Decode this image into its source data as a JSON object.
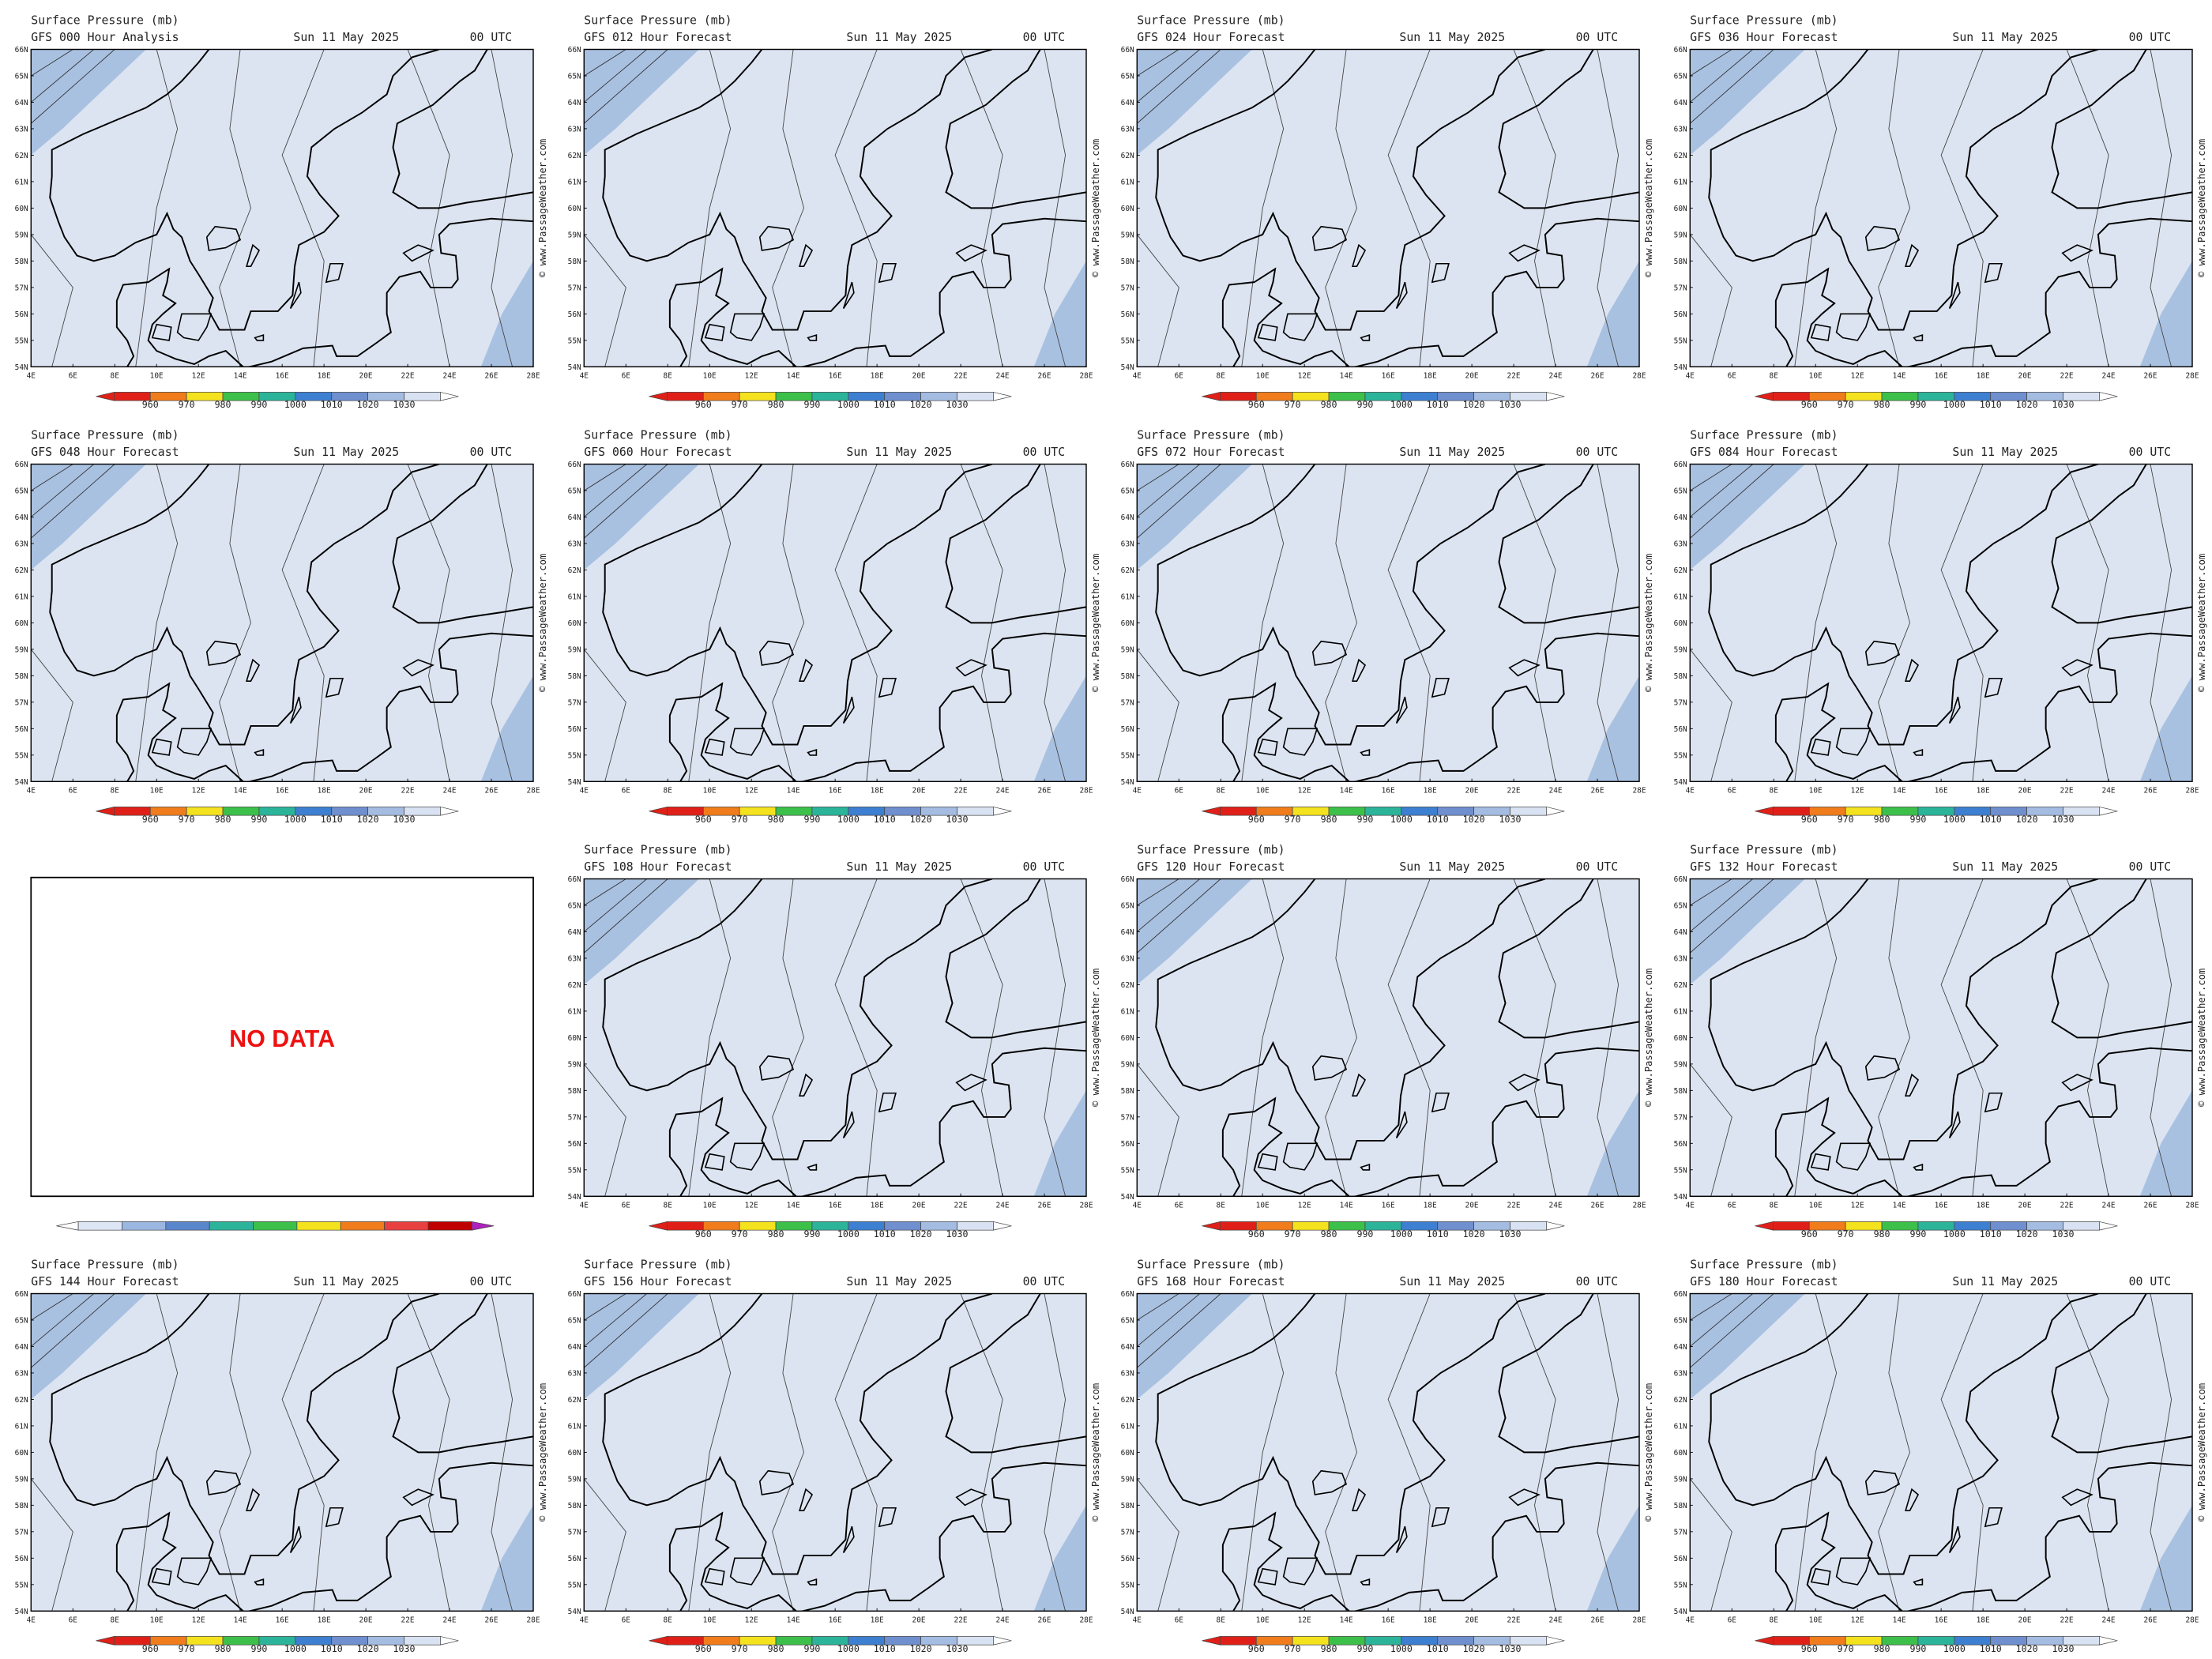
{
  "panels": [
    {
      "title": "Surface Pressure (mb)",
      "subtitle": "GFS 000 Hour Analysis",
      "date": "Sun 11 May 2025",
      "time": "00 UTC"
    },
    {
      "title": "Surface Pressure (mb)",
      "subtitle": "GFS 012 Hour Forecast",
      "date": "Sun 11 May 2025",
      "time": "00 UTC"
    },
    {
      "title": "Surface Pressure (mb)",
      "subtitle": "GFS 024 Hour Forecast",
      "date": "Sun 11 May 2025",
      "time": "00 UTC"
    },
    {
      "title": "Surface Pressure (mb)",
      "subtitle": "GFS 036 Hour Forecast",
      "date": "Sun 11 May 2025",
      "time": "00 UTC"
    },
    {
      "title": "Surface Pressure (mb)",
      "subtitle": "GFS 048 Hour Forecast",
      "date": "Sun 11 May 2025",
      "time": "00 UTC"
    },
    {
      "title": "Surface Pressure (mb)",
      "subtitle": "GFS 060 Hour Forecast",
      "date": "Sun 11 May 2025",
      "time": "00 UTC"
    },
    {
      "title": "Surface Pressure (mb)",
      "subtitle": "GFS 072 Hour Forecast",
      "date": "Sun 11 May 2025",
      "time": "00 UTC"
    },
    {
      "title": "Surface Pressure (mb)",
      "subtitle": "GFS 084 Hour Forecast",
      "date": "Sun 11 May 2025",
      "time": "00 UTC"
    },
    {
      "message": "NO DATA"
    },
    {
      "title": "Surface Pressure (mb)",
      "subtitle": "GFS 108 Hour Forecast",
      "date": "Sun 11 May 2025",
      "time": "00 UTC"
    },
    {
      "title": "Surface Pressure (mb)",
      "subtitle": "GFS 120 Hour Forecast",
      "date": "Sun 11 May 2025",
      "time": "00 UTC"
    },
    {
      "title": "Surface Pressure (mb)",
      "subtitle": "GFS 132 Hour Forecast",
      "date": "Sun 11 May 2025",
      "time": "00 UTC"
    },
    {
      "title": "Surface Pressure (mb)",
      "subtitle": "GFS 144 Hour Forecast",
      "date": "Sun 11 May 2025",
      "time": "00 UTC"
    },
    {
      "title": "Surface Pressure (mb)",
      "subtitle": "GFS 156 Hour Forecast",
      "date": "Sun 11 May 2025",
      "time": "00 UTC"
    },
    {
      "title": "Surface Pressure (mb)",
      "subtitle": "GFS 168 Hour Forecast",
      "date": "Sun 11 May 2025",
      "time": "00 UTC"
    },
    {
      "title": "Surface Pressure (mb)",
      "subtitle": "GFS 180 Hour Forecast",
      "date": "Sun 11 May 2025",
      "time": "00 UTC"
    }
  ],
  "lat_labels": [
    "66N",
    "65N",
    "64N",
    "63N",
    "62N",
    "61N",
    "60N",
    "59N",
    "58N",
    "57N",
    "56N",
    "55N",
    "54N"
  ],
  "lon_labels": [
    "4E",
    "6E",
    "8E",
    "10E",
    "12E",
    "14E",
    "16E",
    "18E",
    "20E",
    "22E",
    "24E",
    "26E",
    "28E"
  ],
  "colorbar_labels": [
    960,
    970,
    980,
    990,
    1000,
    1010,
    1020,
    1030
  ],
  "watermark": "© www.PassageWeather.com"
}
